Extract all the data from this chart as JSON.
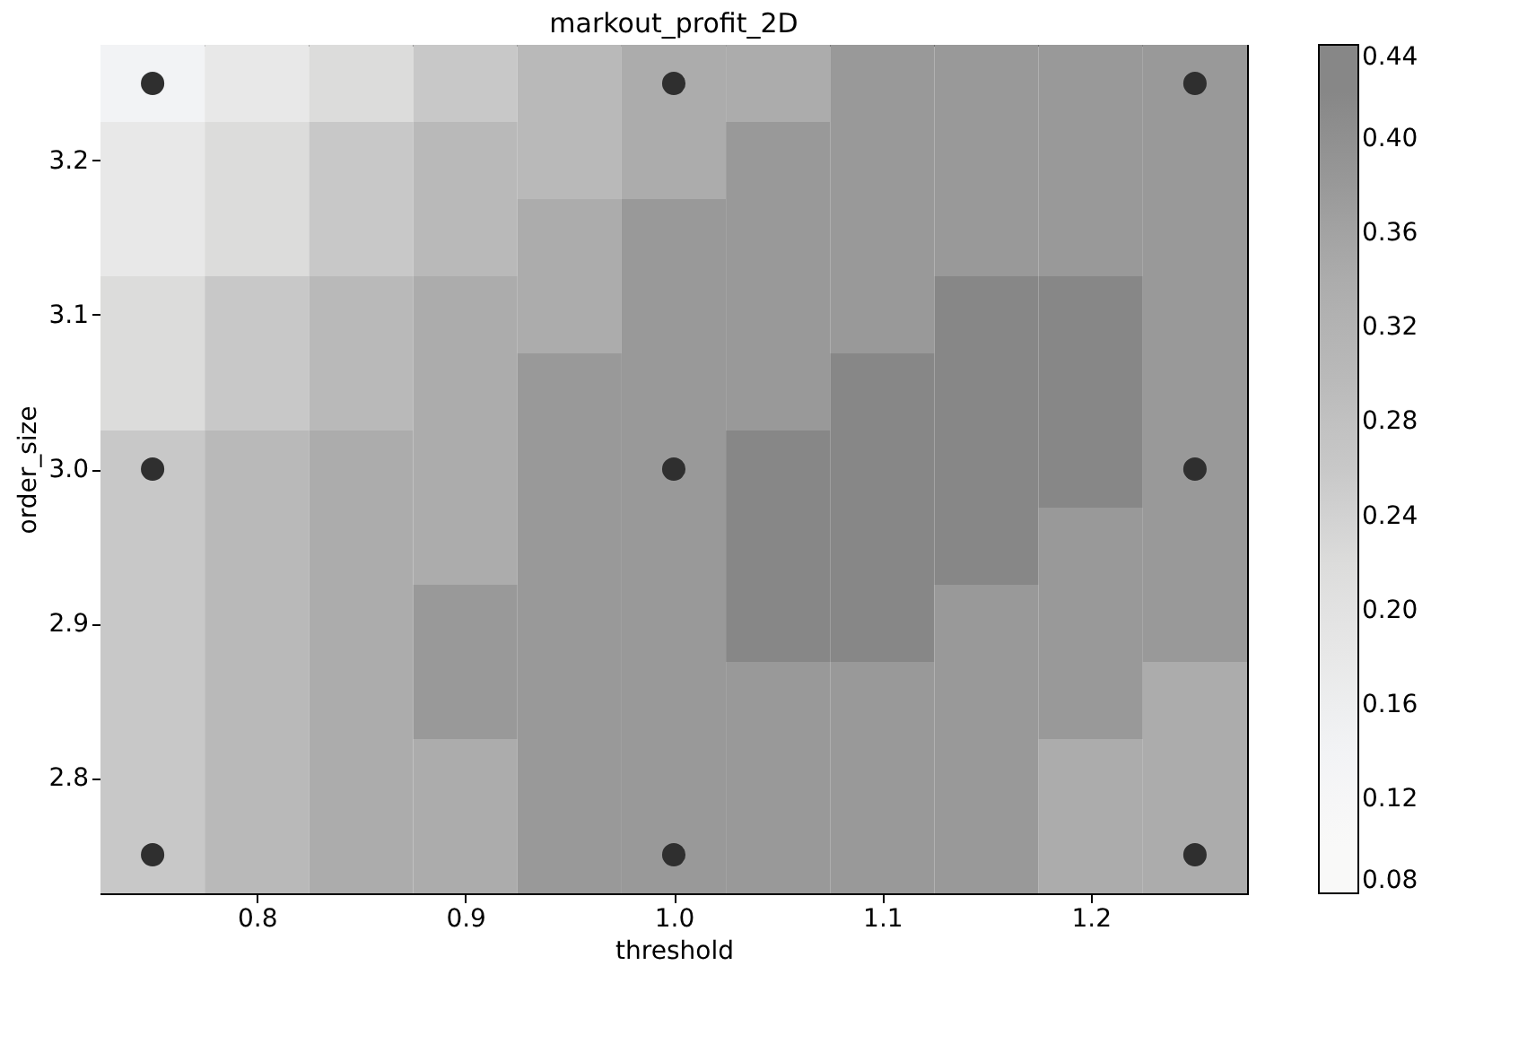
{
  "chart_data": {
    "type": "heatmap",
    "title": "markout_profit_2D",
    "xlabel": "threshold",
    "ylabel": "order_size",
    "x": [
      0.75,
      0.8,
      0.85,
      0.9,
      0.95,
      1,
      1.05,
      1.1,
      1.15,
      1.2,
      1.25
    ],
    "y": [
      3.25,
      3.2,
      3.15,
      3.1,
      3.05,
      3,
      2.95,
      2.9,
      2.85,
      2.8,
      2.75
    ],
    "cells": [
      [
        0.14,
        0.18,
        0.22,
        0.26,
        0.3,
        0.34,
        0.34,
        0.38,
        0.38,
        0.38,
        0.38
      ],
      [
        0.18,
        0.22,
        0.26,
        0.3,
        0.3,
        0.34,
        0.38,
        0.38,
        0.38,
        0.38,
        0.38
      ],
      [
        0.18,
        0.22,
        0.26,
        0.3,
        0.34,
        0.38,
        0.38,
        0.38,
        0.38,
        0.38,
        0.38
      ],
      [
        0.22,
        0.26,
        0.3,
        0.34,
        0.34,
        0.38,
        0.38,
        0.38,
        0.42,
        0.42,
        0.38
      ],
      [
        0.22,
        0.26,
        0.3,
        0.34,
        0.38,
        0.38,
        0.38,
        0.42,
        0.42,
        0.42,
        0.38
      ],
      [
        0.26,
        0.3,
        0.34,
        0.34,
        0.38,
        0.38,
        0.42,
        0.42,
        0.42,
        0.42,
        0.38
      ],
      [
        0.26,
        0.3,
        0.34,
        0.34,
        0.38,
        0.38,
        0.42,
        0.42,
        0.42,
        0.38,
        0.38
      ],
      [
        0.26,
        0.3,
        0.34,
        0.38,
        0.38,
        0.38,
        0.42,
        0.42,
        0.38,
        0.38,
        0.38
      ],
      [
        0.26,
        0.3,
        0.34,
        0.38,
        0.38,
        0.38,
        0.38,
        0.38,
        0.38,
        0.38,
        0.34
      ],
      [
        0.26,
        0.3,
        0.34,
        0.34,
        0.38,
        0.38,
        0.38,
        0.38,
        0.38,
        0.34,
        0.34
      ],
      [
        0.26,
        0.3,
        0.34,
        0.34,
        0.38,
        0.38,
        0.38,
        0.38,
        0.38,
        0.34,
        0.34
      ]
    ],
    "clim": [
      0.08,
      0.44
    ],
    "cticks": [
      0.08,
      0.12,
      0.16,
      {
        "value": 0.2,
        "label": "0.20"
      },
      0.24,
      0.28,
      0.32,
      0.36,
      {
        "value": 0.4,
        "label": "0.40"
      },
      0.44
    ],
    "colors": [
      "#f9f9f8",
      "#f2f3f5",
      "#e8e8e8",
      "#dcdcdb",
      "#c8c8c8",
      "#b9b9b9",
      "#acacac",
      "#999999",
      "#878787"
    ],
    "xlim": [
      0.725,
      1.275
    ],
    "xticks": [
      0.8,
      0.9,
      {
        "value": 1,
        "label": "1.0"
      },
      1.1,
      1.2
    ],
    "ylim": [
      2.725,
      3.275
    ],
    "yticks": [
      2.8,
      2.9,
      {
        "value": 3,
        "label": "3.0"
      },
      3.1,
      3.2
    ],
    "marker": "circle",
    "series": [
      {
        "type": "scatter",
        "color": "#2f2f2f",
        "x": [
          0.75,
          0.75,
          0.75,
          1,
          1,
          1,
          1.25,
          1.25,
          1.25
        ],
        "values": [
          2.75,
          3,
          3.25,
          2.75,
          3,
          3.25,
          2.75,
          3,
          3.25
        ]
      }
    ]
  }
}
